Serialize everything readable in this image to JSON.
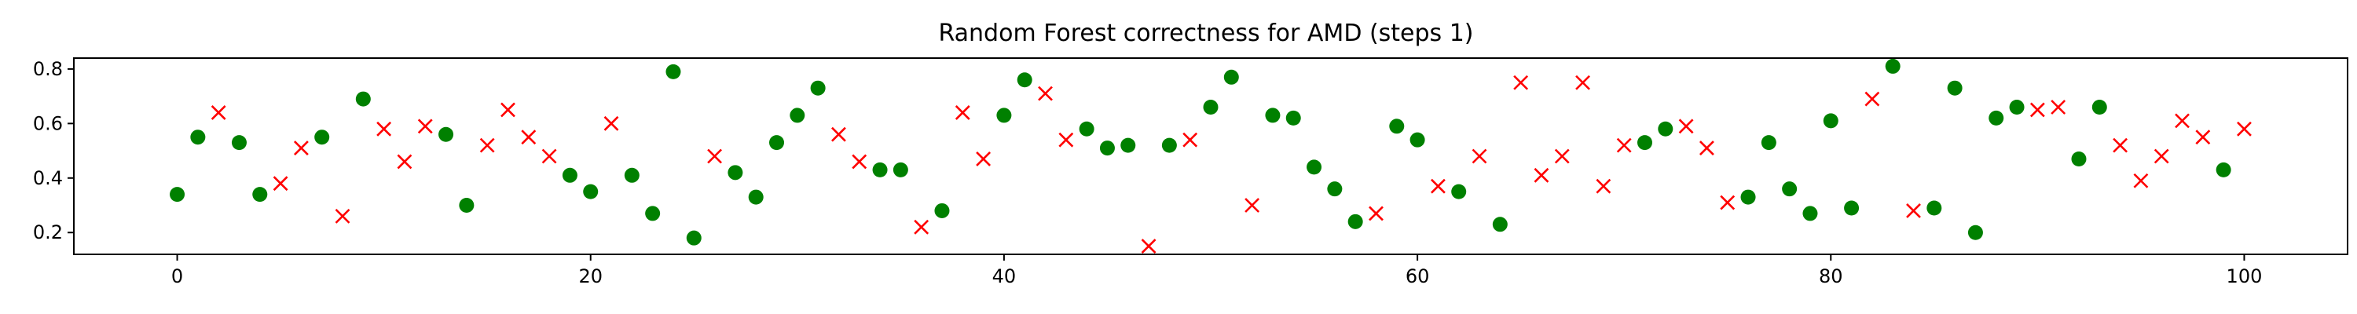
{
  "chart_data": {
    "type": "scatter",
    "title": "Random Forest correctness for AMD (steps 1)",
    "xlabel": "",
    "ylabel": "",
    "xlim": [
      -5,
      105
    ],
    "ylim": [
      0.12,
      0.84
    ],
    "xticks": [
      0,
      20,
      40,
      60,
      80,
      100
    ],
    "yticks": [
      0.2,
      0.4,
      0.6,
      0.8
    ],
    "grid": false,
    "legend": "none",
    "series": [
      {
        "marker": "circle",
        "color": "#008000",
        "x": [
          0,
          1,
          3,
          4,
          7,
          9,
          13,
          14,
          19,
          20,
          22,
          23,
          24,
          25,
          27,
          28,
          29,
          30,
          31,
          34,
          35,
          37,
          40,
          41,
          44,
          45,
          46,
          48,
          50,
          51,
          53,
          54,
          55,
          56,
          57,
          59,
          60,
          62,
          64,
          71,
          72,
          76,
          77,
          78,
          79,
          80,
          81,
          83,
          85,
          86,
          87,
          88,
          89,
          92,
          93,
          99
        ],
        "y": [
          0.34,
          0.55,
          0.53,
          0.34,
          0.55,
          0.69,
          0.56,
          0.3,
          0.41,
          0.35,
          0.41,
          0.27,
          0.79,
          0.18,
          0.42,
          0.33,
          0.53,
          0.63,
          0.73,
          0.43,
          0.43,
          0.28,
          0.63,
          0.76,
          0.58,
          0.51,
          0.52,
          0.52,
          0.66,
          0.77,
          0.63,
          0.62,
          0.44,
          0.36,
          0.24,
          0.59,
          0.54,
          0.35,
          0.23,
          0.53,
          0.58,
          0.33,
          0.53,
          0.36,
          0.27,
          0.61,
          0.29,
          0.81,
          0.29,
          0.73,
          0.2,
          0.62,
          0.66,
          0.47,
          0.66,
          0.43
        ]
      },
      {
        "marker": "x",
        "color": "#ff0000",
        "x": [
          2,
          5,
          6,
          8,
          10,
          11,
          12,
          15,
          16,
          17,
          18,
          21,
          26,
          32,
          33,
          36,
          38,
          39,
          42,
          43,
          47,
          49,
          52,
          58,
          61,
          63,
          65,
          66,
          67,
          68,
          69,
          70,
          73,
          74,
          75,
          82,
          84,
          90,
          91,
          94,
          95,
          96,
          97,
          98,
          100
        ],
        "y": [
          0.64,
          0.38,
          0.51,
          0.26,
          0.58,
          0.46,
          0.59,
          0.52,
          0.65,
          0.55,
          0.48,
          0.6,
          0.48,
          0.56,
          0.46,
          0.22,
          0.64,
          0.47,
          0.71,
          0.54,
          0.15,
          0.54,
          0.3,
          0.27,
          0.37,
          0.48,
          0.75,
          0.41,
          0.48,
          0.75,
          0.37,
          0.52,
          0.59,
          0.51,
          0.31,
          0.69,
          0.28,
          0.65,
          0.66,
          0.52,
          0.39,
          0.48,
          0.61,
          0.55,
          0.58
        ]
      }
    ]
  }
}
